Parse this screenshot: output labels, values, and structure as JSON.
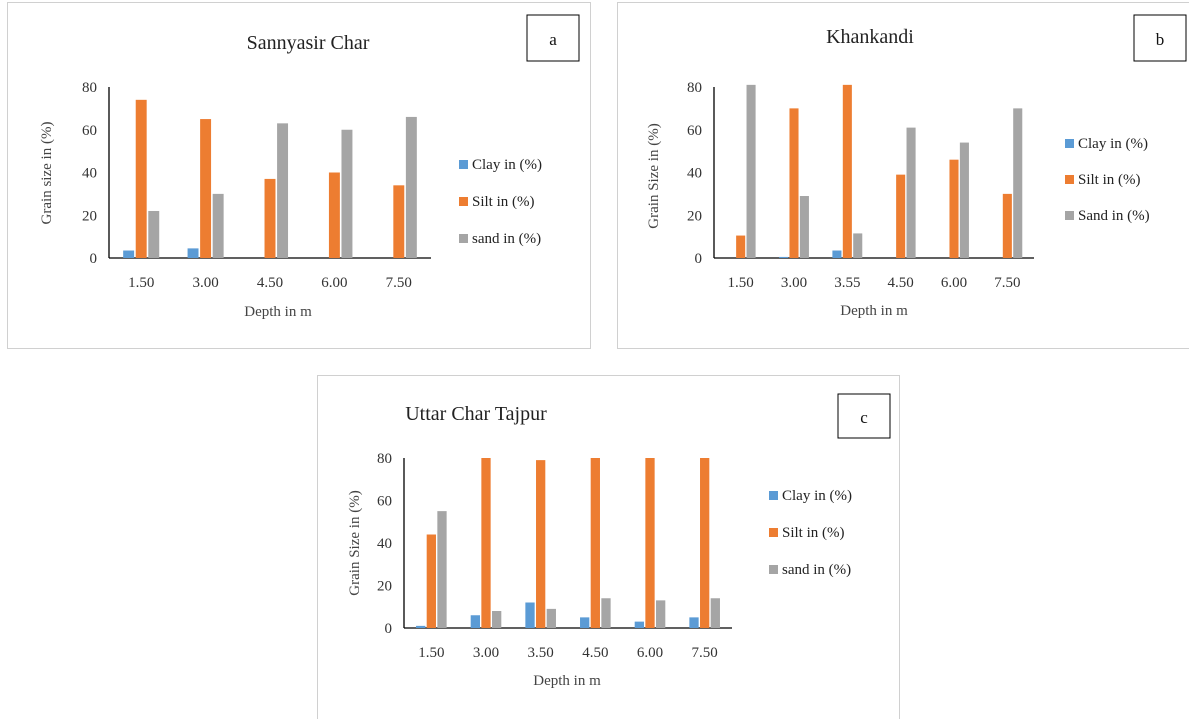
{
  "colors": {
    "clay": "#5b9bd5",
    "silt": "#ed7d31",
    "sand": "#a5a5a5",
    "axis": "#000000"
  },
  "charts": [
    {
      "title": "Sannyasir Char",
      "panel_letter": "a",
      "ylabel": "Grain size in (%)",
      "xlabel": "Depth in m",
      "yticks": [
        "0",
        "20",
        "40",
        "60",
        "80"
      ],
      "legend": [
        "Clay in (%)",
        "Silt in (%)",
        "sand in (%)"
      ],
      "categories": [
        "1.50",
        "3.00",
        "4.50",
        "6.00",
        "7.50"
      ]
    },
    {
      "title": "Khankandi",
      "panel_letter": "b",
      "ylabel": "Grain Size in (%)",
      "xlabel": "Depth in m",
      "yticks": [
        "0",
        "20",
        "40",
        "60",
        "80"
      ],
      "legend": [
        "Clay in (%)",
        "Silt in (%)",
        "Sand in (%)"
      ],
      "categories": [
        "1.50",
        "3.00",
        "3.55",
        "4.50",
        "6.00",
        "7.50"
      ]
    },
    {
      "title": "Uttar Char Tajpur",
      "panel_letter": "c",
      "ylabel": "Grain Size in (%)",
      "xlabel": "Depth in m",
      "yticks": [
        "0",
        "20",
        "40",
        "60",
        "80"
      ],
      "legend": [
        "Clay in (%)",
        "Silt in (%)",
        "sand in (%)"
      ],
      "categories": [
        "1.50",
        "3.00",
        "3.50",
        "4.50",
        "6.00",
        "7.50"
      ]
    }
  ],
  "chart_data": [
    {
      "type": "bar",
      "title": "Sannyasir Char",
      "xlabel": "Depth in m",
      "ylabel": "Grain size in (%)",
      "ylim": [
        0,
        80
      ],
      "grid": false,
      "legend_position": "right",
      "categories": [
        "1.50",
        "3.00",
        "4.50",
        "6.00",
        "7.50"
      ],
      "series": [
        {
          "name": "Clay in (%)",
          "values": [
            3.5,
            4.5,
            0,
            0,
            0
          ]
        },
        {
          "name": "Silt in (%)",
          "values": [
            74,
            65,
            37,
            40,
            34
          ]
        },
        {
          "name": "sand in (%)",
          "values": [
            22,
            30,
            63,
            60,
            66
          ]
        }
      ]
    },
    {
      "type": "bar",
      "title": "Khankandi",
      "xlabel": "Depth in m",
      "ylabel": "Grain Size in (%)",
      "ylim": [
        0,
        80
      ],
      "grid": false,
      "legend_position": "right",
      "categories": [
        "1.50",
        "3.00",
        "3.55",
        "4.50",
        "6.00",
        "7.50"
      ],
      "series": [
        {
          "name": "Clay in (%)",
          "values": [
            0,
            0.5,
            3.5,
            0,
            0,
            0
          ]
        },
        {
          "name": "Silt in (%)",
          "values": [
            10.5,
            70,
            81,
            39,
            46,
            30
          ]
        },
        {
          "name": "Sand in (%)",
          "values": [
            81,
            29,
            11.5,
            61,
            54,
            70
          ]
        }
      ]
    },
    {
      "type": "bar",
      "title": "Uttar Char Tajpur",
      "xlabel": "Depth in m",
      "ylabel": "Grain Size in (%)",
      "ylim": [
        0,
        80
      ],
      "grid": false,
      "legend_position": "right",
      "categories": [
        "1.50",
        "3.00",
        "3.50",
        "4.50",
        "6.00",
        "7.50"
      ],
      "series": [
        {
          "name": "Clay in (%)",
          "values": [
            1,
            6,
            12,
            5,
            3,
            5
          ]
        },
        {
          "name": "Silt in (%)",
          "values": [
            44,
            80,
            79,
            80,
            80,
            80
          ]
        },
        {
          "name": "sand in (%)",
          "values": [
            55,
            8,
            9,
            14,
            13,
            14
          ]
        }
      ]
    }
  ]
}
